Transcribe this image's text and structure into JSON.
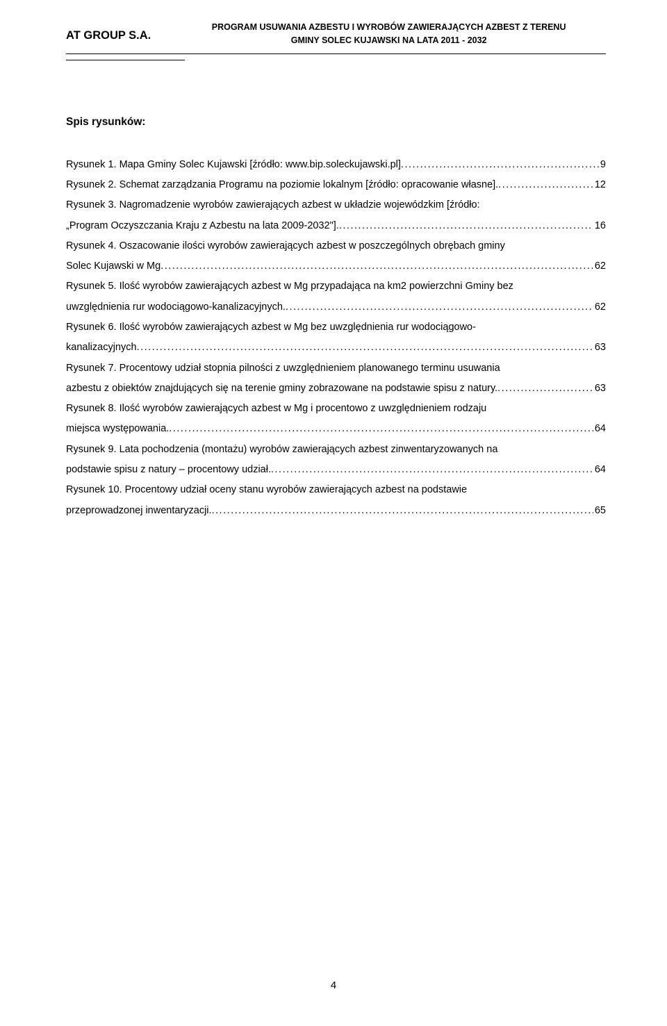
{
  "header": {
    "company": "AT GROUP S.A.",
    "title_line1": "PROGRAM USUWANIA AZBESTU I WYROBÓW ZAWIERAJĄCYCH AZBEST Z TERENU",
    "title_line2": "GMINY SOLEC KUJAWSKI NA LATA 2011 - 2032"
  },
  "section_title": "Spis rysunków:",
  "entries": [
    {
      "lines": [
        "Rysunek 1.  Mapa Gminy Solec Kujawski [źródło: www.bip.soleckujawski.pl]"
      ],
      "page": "9"
    },
    {
      "lines": [
        "Rysunek 2.  Schemat zarządzania Programu na poziomie lokalnym [źródło: opracowanie własne]."
      ],
      "page": "12"
    },
    {
      "lines": [
        "Rysunek 3. Nagromadzenie wyrobów zawierających azbest w układzie wojewódzkim [źródło:",
        "„Program Oczyszczania Kraju z Azbestu na lata 2009-2032\"]."
      ],
      "page": "16"
    },
    {
      "lines": [
        "Rysunek 4. Oszacowanie ilości wyrobów zawierających azbest  w poszczególnych  obrębach gminy",
        "Solec Kujawski w Mg"
      ],
      "page": "62"
    },
    {
      "lines": [
        "Rysunek 5. Ilość wyrobów zawierających azbest w Mg przypadająca na km2 powierzchni Gminy bez",
        "uwzględnienia rur wodociągowo-kanalizacyjnych."
      ],
      "page": "62"
    },
    {
      "lines": [
        "Rysunek 6. Ilość wyrobów zawierających azbest w Mg bez uwzględnienia rur wodociągowo-",
        "kanalizacyjnych"
      ],
      "page": "63"
    },
    {
      "lines": [
        "Rysunek 7. Procentowy udział stopnia pilności z uwzględnieniem planowanego terminu usuwania",
        "azbestu z obiektów znajdujących się na terenie gminy zobrazowane na podstawie spisu z natury."
      ],
      "page": "63"
    },
    {
      "lines": [
        "Rysunek 8. Ilość wyrobów zawierających azbest w Mg i procentowo z uwzględnieniem rodzaju",
        "miejsca występowania."
      ],
      "page": "64"
    },
    {
      "lines": [
        "Rysunek 9. Lata pochodzenia (montażu) wyrobów zawierających azbest zinwentaryzowanych na",
        "podstawie spisu z natury – procentowy udział."
      ],
      "page": "64"
    },
    {
      "lines": [
        "Rysunek 10. Procentowy udział oceny stanu wyrobów zawierających azbest na podstawie",
        "przeprowadzonej inwentaryzacji."
      ],
      "page": "65"
    }
  ],
  "page_number": "4"
}
